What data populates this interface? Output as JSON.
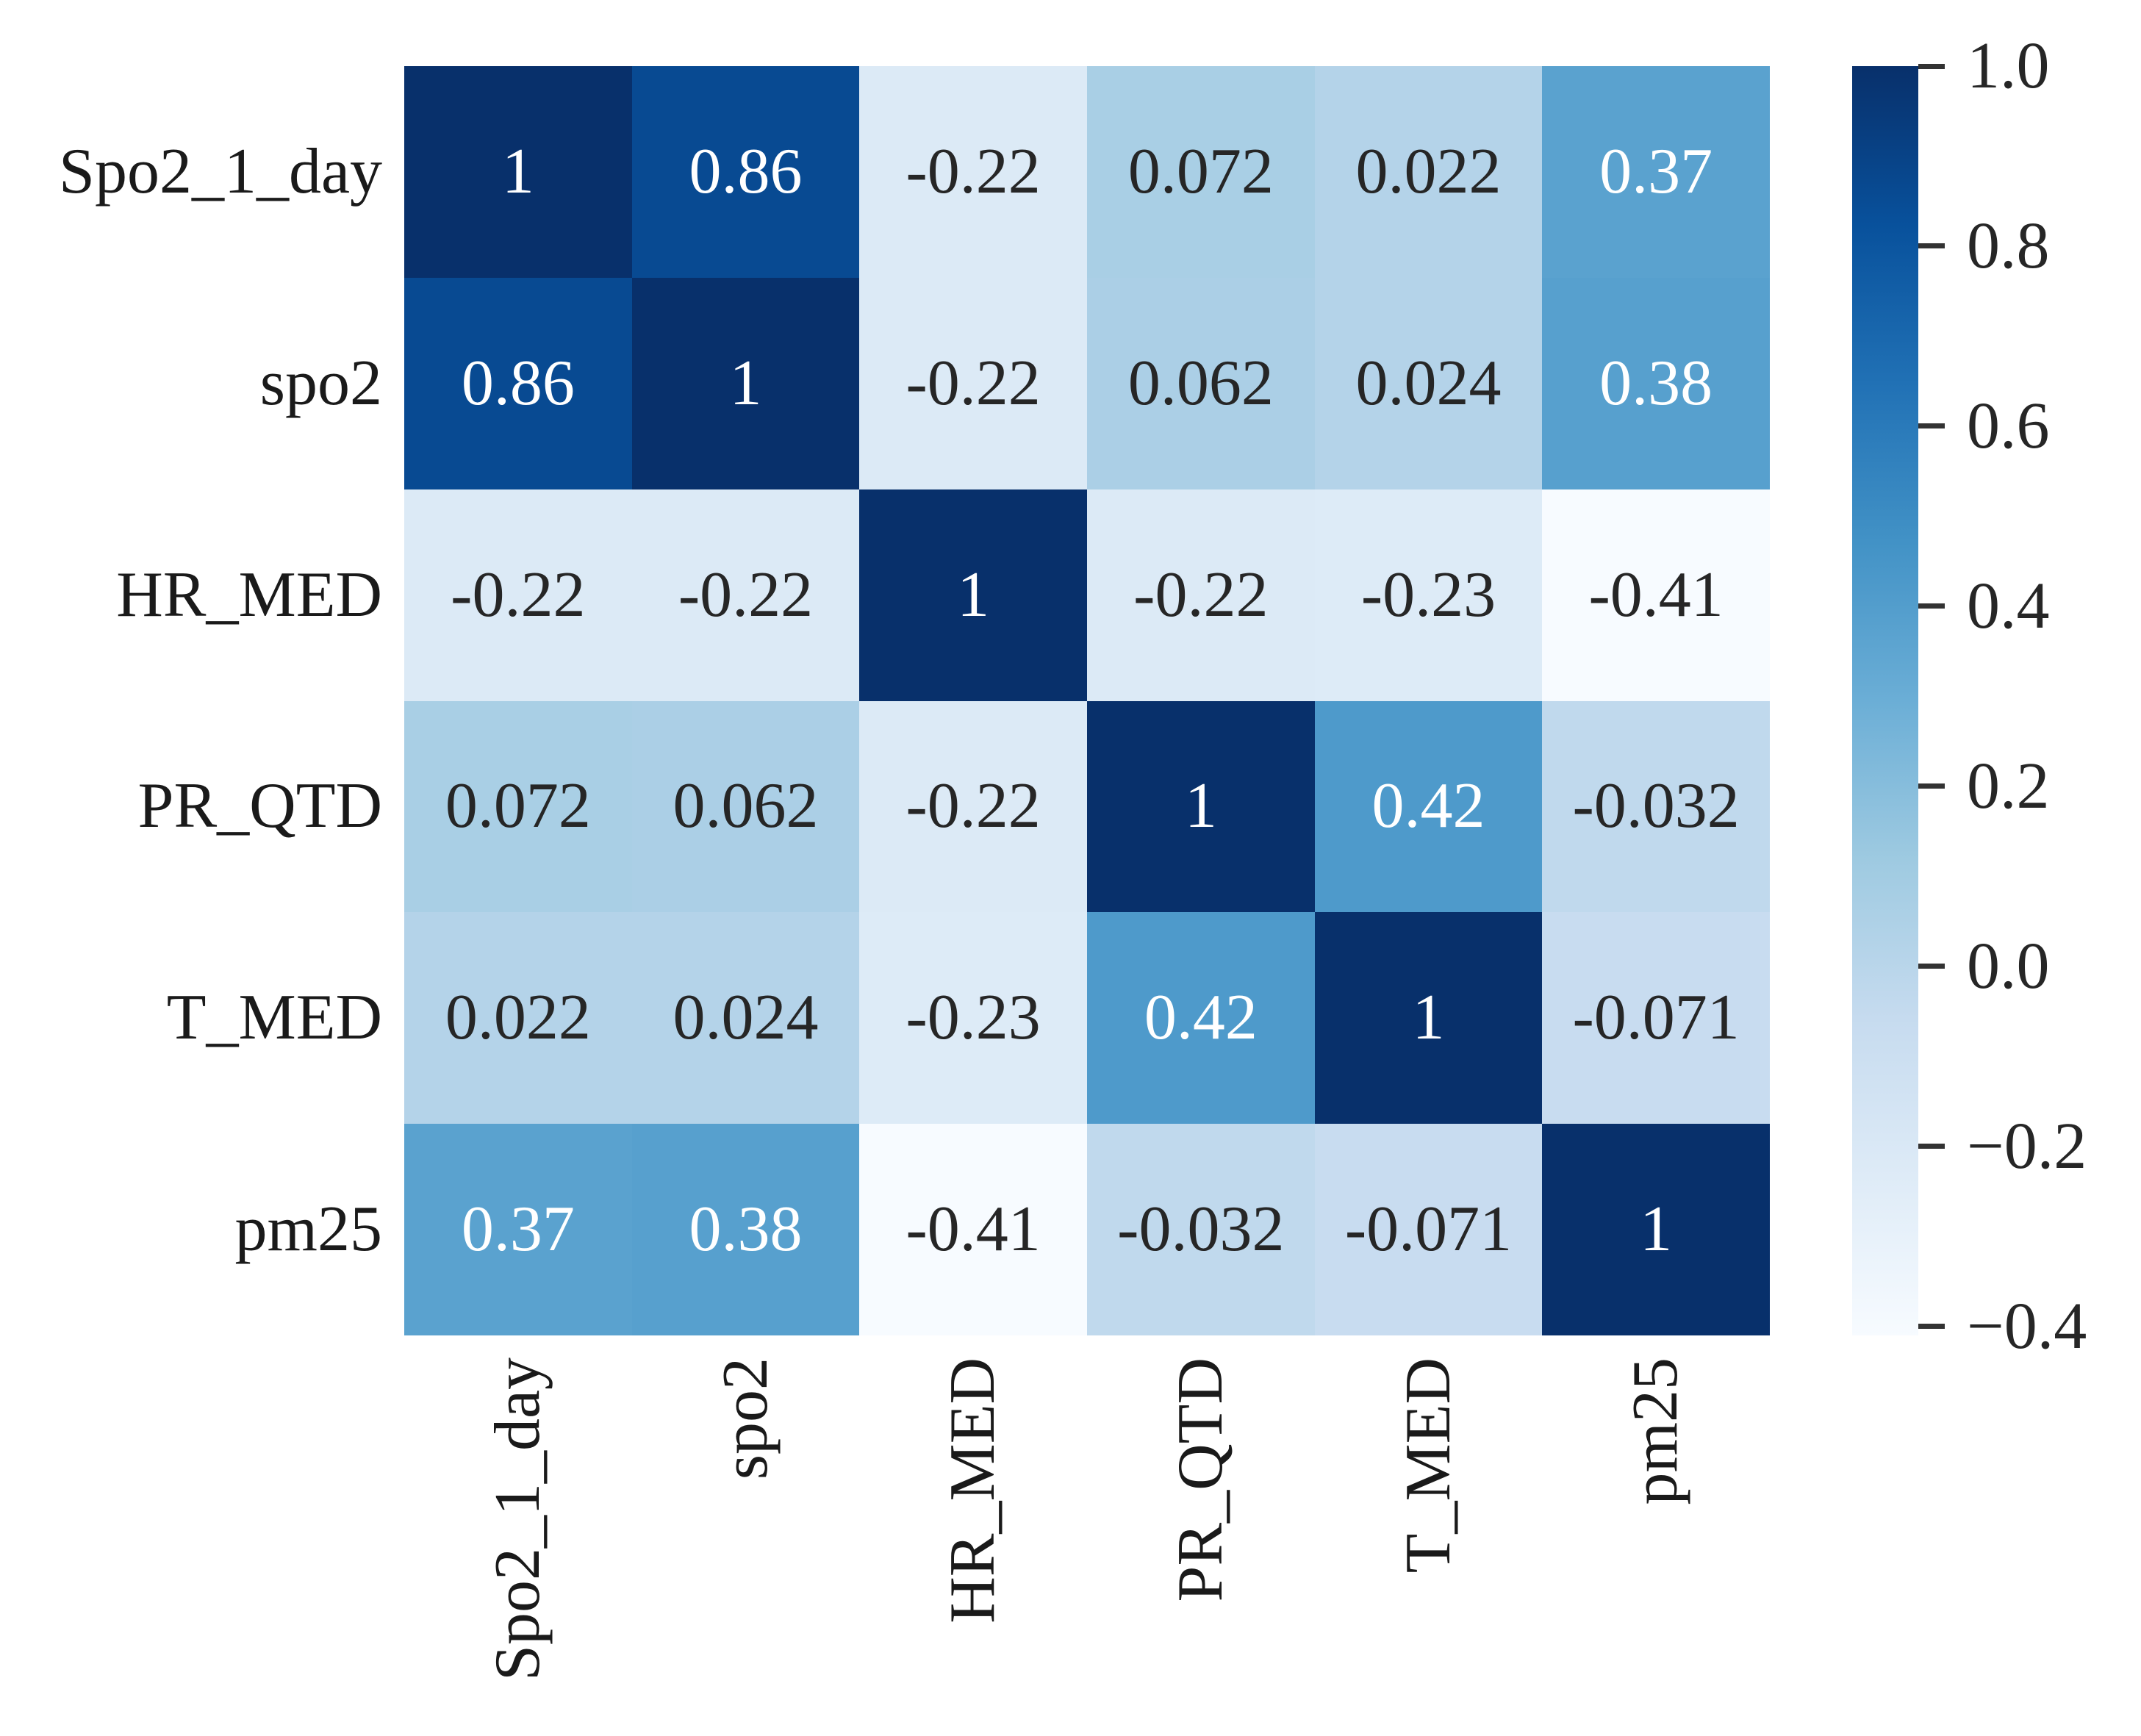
{
  "figure": {
    "background": "#ffffff",
    "title": ""
  },
  "chart_data": {
    "type": "heatmap",
    "title": "",
    "xlabel": "",
    "ylabel": "",
    "variables": [
      "Spo2_1_day",
      "spo2",
      "HR_MED",
      "PR_QTD",
      "T_MED",
      "pm25"
    ],
    "matrix": [
      [
        1,
        0.86,
        -0.22,
        0.072,
        0.022,
        0.37
      ],
      [
        0.86,
        1,
        -0.22,
        0.062,
        0.024,
        0.38
      ],
      [
        -0.22,
        -0.22,
        1,
        -0.22,
        -0.23,
        -0.41
      ],
      [
        0.072,
        0.062,
        -0.22,
        1,
        0.42,
        -0.032
      ],
      [
        0.022,
        0.024,
        -0.23,
        0.42,
        1,
        -0.071
      ],
      [
        0.37,
        0.38,
        -0.41,
        -0.032,
        -0.071,
        1
      ]
    ],
    "annotations": [
      [
        "1",
        "0.86",
        "-0.22",
        "0.072",
        "0.022",
        "0.37"
      ],
      [
        "0.86",
        "1",
        "-0.22",
        "0.062",
        "0.024",
        "0.38"
      ],
      [
        "-0.22",
        "-0.22",
        "1",
        "-0.22",
        "-0.23",
        "-0.41"
      ],
      [
        "0.072",
        "0.062",
        "-0.22",
        "1",
        "0.42",
        "-0.032"
      ],
      [
        "0.022",
        "0.024",
        "-0.23",
        "0.42",
        "1",
        "-0.071"
      ],
      [
        "0.37",
        "0.38",
        "-0.41",
        "-0.032",
        "-0.071",
        "1"
      ]
    ],
    "vmin": -0.41,
    "vmax": 1.0,
    "colormap": {
      "name": "Blues",
      "stops": [
        "#f7fbff",
        "#deebf7",
        "#c6dbef",
        "#9ecae1",
        "#6baed6",
        "#4292c6",
        "#2171b5",
        "#08519c",
        "#08306b"
      ]
    },
    "colorbar": {
      "tick_labels": [
        "1.0",
        "0.8",
        "0.6",
        "0.4",
        "0.2",
        "0.0",
        "−0.2",
        "−0.4"
      ],
      "tick_values": [
        1.0,
        0.8,
        0.6,
        0.4,
        0.2,
        0.0,
        -0.2,
        -0.4
      ],
      "position": "right"
    },
    "annotation_text_colors": {
      "on_dark": "#ffffff",
      "on_light": "#262626"
    },
    "grid": false,
    "legend": false
  }
}
